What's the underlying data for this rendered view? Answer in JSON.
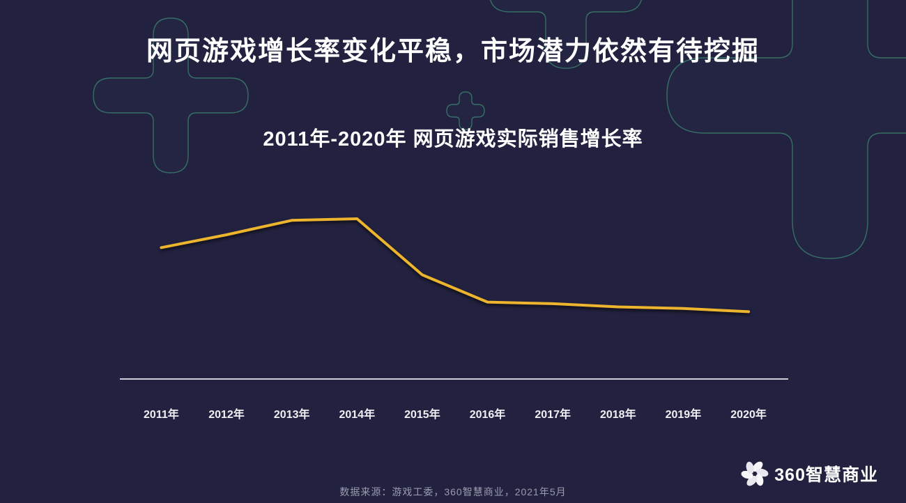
{
  "slide": {
    "title": "网页游戏增长率变化平稳，市场潜力依然有待挖掘",
    "source_note": "数据来源：游戏工委，360智慧商业，2021年5月",
    "colors": {
      "background": "#222240",
      "line": "#ECB52D",
      "axis": "#CFCFDB",
      "decor_outline": "#3F9076",
      "title_text": "#FFFFFF",
      "label_text": "#EEF0F4",
      "source_text": "#9B9CAE"
    },
    "decor_icons": [
      "plus-outline-icon",
      "plus-outline-icon-small",
      "plus-outline-icon-top",
      "plus-outline-icon-giant"
    ]
  },
  "chart_data": {
    "type": "line",
    "title": "2011年-2020年 网页游戏实际销售增长率",
    "categories": [
      "2011年",
      "2012年",
      "2013年",
      "2014年",
      "2015年",
      "2016年",
      "2017年",
      "2018年",
      "2019年",
      "2020年"
    ],
    "series": [
      {
        "name": "网页游戏实际销售增长率",
        "values": [
          82,
          90,
          99,
          100,
          65,
          48,
          47,
          45,
          44,
          42
        ]
      }
    ],
    "value_units": "relative index estimated from pixels (2014 peak = 100); y-axis is not labeled in the source image",
    "xlabel": "",
    "ylabel": "",
    "grid": false,
    "legend": false,
    "y_axis_visible": false,
    "x_axis_line_visible": true,
    "line_color": "#ECB52D",
    "trend_summary": "rises 2011-2014, sharp drop 2014-2016, then nearly flat slow decline through 2020"
  },
  "branding": {
    "logo_text": "360智慧商业",
    "logo_icon": "360-pinwheel-flower-icon"
  }
}
